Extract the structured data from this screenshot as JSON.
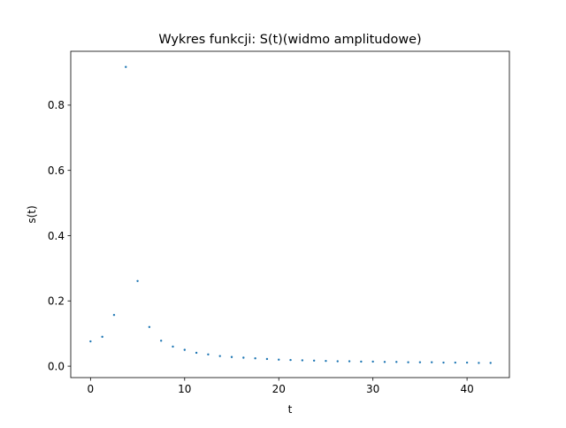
{
  "chart_data": {
    "type": "scatter",
    "title": "Wykres funkcji: S(t)(widmo amplitudowe)",
    "xlabel": "t",
    "ylabel": "s(t)",
    "xlim": [
      -2.1,
      44.5
    ],
    "ylim": [
      -0.035,
      0.965
    ],
    "xticks": [
      0,
      10,
      20,
      30,
      40
    ],
    "yticks": [
      0.0,
      0.2,
      0.4,
      0.6,
      0.8
    ],
    "ytick_labels": [
      "0.0",
      "0.2",
      "0.4",
      "0.6",
      "0.8"
    ],
    "grid": false,
    "series": [
      {
        "color": "#1f77b4",
        "x": [
          0,
          1.25,
          2.5,
          3.75,
          5.0,
          6.25,
          7.5,
          8.75,
          10.0,
          11.25,
          12.5,
          13.75,
          15.0,
          16.25,
          17.5,
          18.75,
          20.0,
          21.25,
          22.5,
          23.75,
          25.0,
          26.25,
          27.5,
          28.75,
          30.0,
          31.25,
          32.5,
          33.75,
          35.0,
          36.25,
          37.5,
          38.75,
          40.0,
          41.25,
          42.5
        ],
        "y": [
          0.076,
          0.09,
          0.157,
          0.917,
          0.261,
          0.12,
          0.078,
          0.06,
          0.05,
          0.041,
          0.036,
          0.031,
          0.028,
          0.026,
          0.024,
          0.022,
          0.02,
          0.019,
          0.018,
          0.017,
          0.016,
          0.015,
          0.015,
          0.014,
          0.014,
          0.013,
          0.013,
          0.012,
          0.012,
          0.012,
          0.011,
          0.011,
          0.011,
          0.01,
          0.01
        ]
      }
    ]
  }
}
